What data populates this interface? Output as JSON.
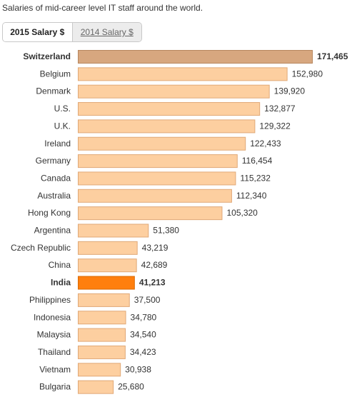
{
  "page": {
    "subtitle": "Salaries of mid-career level IT staff around the world."
  },
  "tabs": [
    {
      "label": "2015 Salary $",
      "active": true
    },
    {
      "label": "2014 Salary $",
      "active": false
    }
  ],
  "colors": {
    "bar_default": "#fdcfa0",
    "bar_default_border": "#e0a877",
    "bar_top": "#d7a77f",
    "bar_top_border": "#b7875f",
    "bar_highlight": "#ff7f0e",
    "bar_highlight_border": "#d96a05"
  },
  "chart_data": {
    "type": "bar",
    "orientation": "horizontal",
    "categories": [
      "Switzerland",
      "Belgium",
      "Denmark",
      "U.S.",
      "U.K.",
      "Ireland",
      "Germany",
      "Canada",
      "Australia",
      "Hong Kong",
      "Argentina",
      "Czech Republic",
      "China",
      "India",
      "Philippines",
      "Indonesia",
      "Malaysia",
      "Thailand",
      "Vietnam",
      "Bulgaria"
    ],
    "values": [
      171465,
      152980,
      139920,
      132877,
      129322,
      122433,
      116454,
      115232,
      112340,
      105320,
      51380,
      43219,
      42689,
      41213,
      37500,
      34780,
      34540,
      34423,
      30938,
      25680
    ],
    "value_labels": [
      "171,465",
      "152,980",
      "139,920",
      "132,877",
      "129,322",
      "122,433",
      "116,454",
      "115,232",
      "112,340",
      "105,320",
      "51,380",
      "43,219",
      "42,689",
      "41,213",
      "37,500",
      "34,780",
      "34,540",
      "34,423",
      "30,938",
      "25,680"
    ],
    "emphasized": [
      "Switzerland",
      "India"
    ],
    "title": "",
    "xlabel": "",
    "ylabel": "",
    "xlim": [
      0,
      171465
    ],
    "grid": false,
    "legend": "none"
  }
}
